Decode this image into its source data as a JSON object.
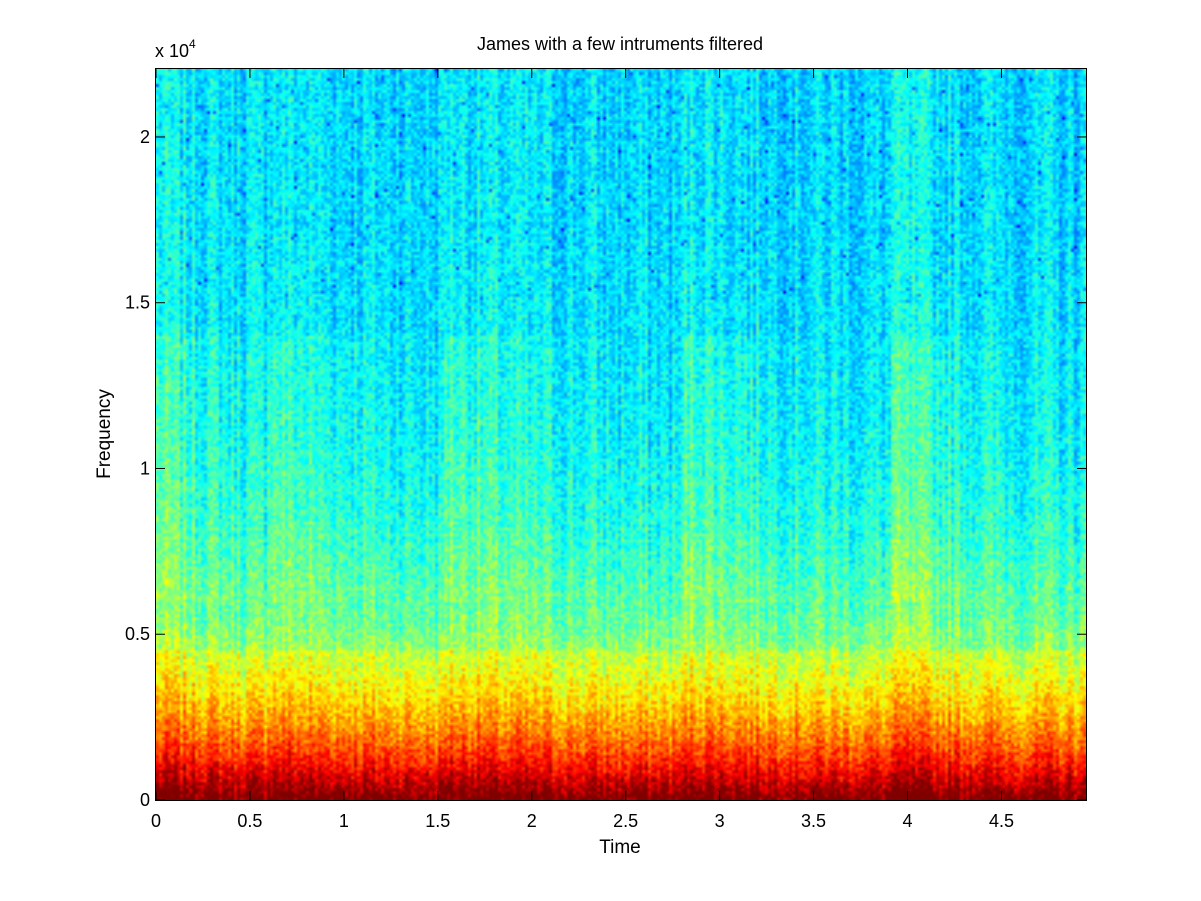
{
  "chart_data": {
    "type": "heatmap",
    "title": "James with a few intruments filtered",
    "xlabel": "Time",
    "ylabel": "Frequency",
    "xlim": [
      0,
      4.95
    ],
    "ylim": [
      0,
      22050
    ],
    "y_exponent_label": {
      "base": "x 10",
      "exponent": "4"
    },
    "x_ticks": [
      0,
      0.5,
      1,
      1.5,
      2,
      2.5,
      3,
      3.5,
      4,
      4.5
    ],
    "x_tick_labels": [
      "0",
      "0.5",
      "1",
      "1.5",
      "2",
      "2.5",
      "3",
      "3.5",
      "4",
      "4.5"
    ],
    "y_ticks": [
      0,
      5000,
      10000,
      15000,
      20000
    ],
    "y_tick_labels": [
      "0",
      "0.5",
      "1",
      "1.5",
      "2"
    ],
    "colormap": "jet",
    "grid": false,
    "onsets": [
      0.0,
      0.59,
      1.54,
      2.81,
      3.92
    ],
    "colors": {
      "low": "#00ffff",
      "mid": "#ffff00",
      "high": "#ff0000"
    }
  }
}
